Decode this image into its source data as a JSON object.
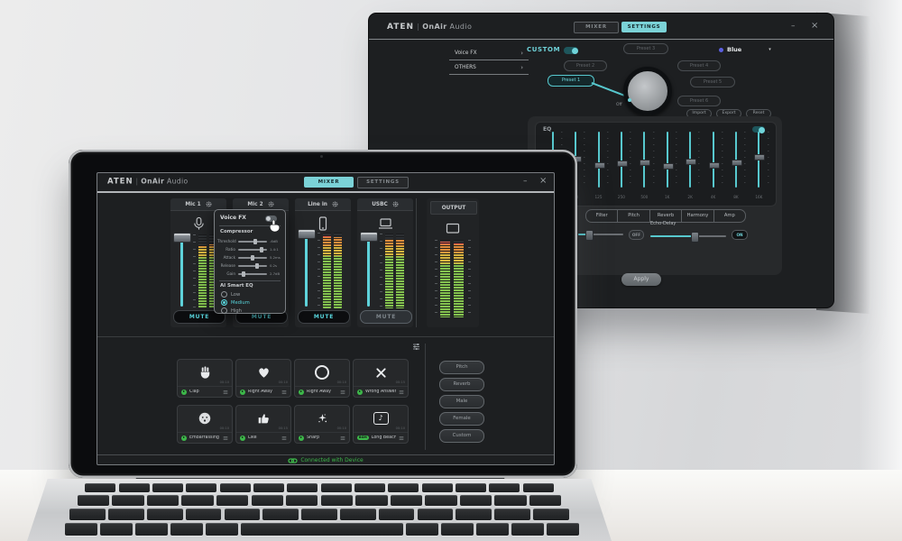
{
  "colors": {
    "accent_teal": "#6fd3d9",
    "status_green": "#3db84a",
    "meter_green": "#84c24f",
    "meter_yellow": "#d6b440",
    "meter_orange": "#dd8c3c",
    "meter_red": "#dd5a4b",
    "blue_dot": "#5b5fe0"
  },
  "mixer_window": {
    "brand": {
      "aten": "ATEN",
      "sep": "|",
      "product": "OnAir",
      "suffix": "Audio"
    },
    "tabs": {
      "mixer": "MIXER",
      "settings": "SETTINGS"
    },
    "window": {
      "minimize": "–",
      "close": "×"
    },
    "channels": [
      {
        "name": "Mic 1"
      },
      {
        "name": "Mic 2"
      },
      {
        "name": "Line in"
      },
      {
        "name": "USBC"
      }
    ],
    "mute": "MUTE",
    "output_label": "OUTPUT",
    "voicefx": {
      "title": "Voice FX",
      "compressor": "Compressor",
      "params": [
        {
          "label": "Threshold",
          "value": "-6dB"
        },
        {
          "label": "Ratio",
          "value": "1.4:1"
        },
        {
          "label": "Attack",
          "value": "5.2ms"
        },
        {
          "label": "Release",
          "value": "0.2s"
        },
        {
          "label": "Gain",
          "value": "2.7dB"
        }
      ],
      "ai_eq": "AI Smart EQ",
      "ai_eq_options": [
        "Low",
        "Medium",
        "High"
      ],
      "ai_eq_selected": "Medium"
    },
    "pads": [
      {
        "label": "Clap",
        "duration": "00:10"
      },
      {
        "label": "Right Away",
        "duration": "00:10"
      },
      {
        "label": "Right Away",
        "duration": "00:10"
      },
      {
        "label": "Wrong Answer",
        "duration": "00:15"
      },
      {
        "label": "Embarrassing",
        "duration": "00:10"
      },
      {
        "label": "Like",
        "duration": "00:15"
      },
      {
        "label": "Sharp",
        "duration": "00:10"
      },
      {
        "label": "Long Beach",
        "duration": "00:10",
        "badge": "BGM"
      }
    ],
    "fx_buttons": [
      "Pitch",
      "Reverb",
      "Male",
      "Female",
      "Custom"
    ],
    "status": "Connected with Device"
  },
  "settings_window": {
    "brand": {
      "aten": "ATEN",
      "sep": "|",
      "product": "OnAir",
      "suffix": "Audio"
    },
    "tabs": {
      "mixer": "MIXER",
      "settings": "SETTINGS"
    },
    "window": {
      "minimize": "–",
      "close": "×"
    },
    "sidebar": [
      "Voice FX",
      "OTHERS"
    ],
    "custom": "CUSTOM",
    "color_name": "Blue",
    "presets": [
      "Preset 1",
      "Preset 2",
      "Preset 3",
      "Preset 4",
      "Preset 5",
      "Preset 6"
    ],
    "active_preset": "Preset 1",
    "knob_off": "Off",
    "file_buttons": [
      "Import",
      "Export",
      "Reset"
    ],
    "eq_label": "EQ",
    "eq_bands": [
      "31",
      "63",
      "125",
      "250",
      "500",
      "1K",
      "2K",
      "4K",
      "8K",
      "16K"
    ],
    "fx_tabs": [
      "Filter",
      "Pitch",
      "Reverb",
      "Harmony",
      "Amp"
    ],
    "echo_label": "Echo-Delay",
    "echo_on": "ON",
    "left_toggle": "OFF",
    "apply": "Apply"
  }
}
